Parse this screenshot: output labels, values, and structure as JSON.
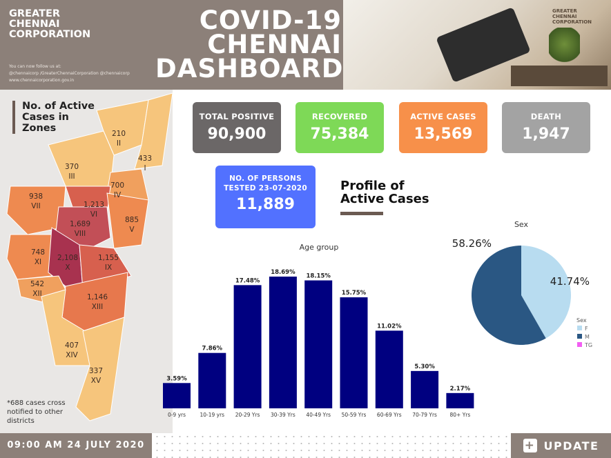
{
  "header": {
    "org_lines": [
      "GREATER",
      "CHENNAI",
      "CORPORATION"
    ],
    "follow_text": "You can now follow us at:",
    "social": "@chennaicorp  /GreaterChennaiCorporation  @chennaicorp",
    "website": "www.chennaicorporation.gov.in",
    "title_lines": [
      "COVID-19",
      "CHENNAI",
      "DASHBOARD"
    ],
    "logo_lines": [
      "GREATER",
      "CHENNAI",
      "CORPORATION"
    ]
  },
  "map": {
    "title_lines": [
      "No. of Active",
      "Cases in",
      "Zones"
    ],
    "zones": [
      {
        "roman": "I",
        "value": "433"
      },
      {
        "roman": "II",
        "value": "210"
      },
      {
        "roman": "III",
        "value": "370"
      },
      {
        "roman": "IV",
        "value": "700"
      },
      {
        "roman": "V",
        "value": "885"
      },
      {
        "roman": "VI",
        "value": "1,213"
      },
      {
        "roman": "VII",
        "value": "938"
      },
      {
        "roman": "VIII",
        "value": "1,689"
      },
      {
        "roman": "IX",
        "value": "1,155"
      },
      {
        "roman": "X",
        "value": "2,108"
      },
      {
        "roman": "XI",
        "value": "748"
      },
      {
        "roman": "XII",
        "value": "542"
      },
      {
        "roman": "XIII",
        "value": "1,146"
      },
      {
        "roman": "XIV",
        "value": "407"
      },
      {
        "roman": "XV",
        "value": "337"
      }
    ],
    "note": "*688 cases cross notified to other districts"
  },
  "cards": {
    "total_positive": {
      "label": "TOTAL POSITIVE",
      "value": "90,900",
      "color": "#6b6767"
    },
    "recovered": {
      "label": "RECOVERED",
      "value": "75,384",
      "color": "#7ed957"
    },
    "active": {
      "label": "ACTIVE CASES",
      "value": "13,569",
      "color": "#f7904a"
    },
    "death": {
      "label": "DEATH",
      "value": "1,947",
      "color": "#a3a3a3"
    },
    "tested": {
      "label_lines": [
        "NO. OF PERSONS",
        "TESTED 23-07-2020"
      ],
      "value": "11,889",
      "color": "#5271ff"
    }
  },
  "profile": {
    "title_lines": [
      "Profile of",
      "Active Cases"
    ]
  },
  "chart_data": [
    {
      "type": "bar",
      "title": "Age group",
      "categories": [
        "0-9 yrs",
        "10-19 yrs",
        "20-29 Yrs",
        "30-39 Yrs",
        "40-49 Yrs",
        "50-59 Yrs",
        "60-69 Yrs",
        "70-79 Yrs",
        "80+ Yrs"
      ],
      "values": [
        3.59,
        7.86,
        17.48,
        18.69,
        18.15,
        15.75,
        11.02,
        5.3,
        2.17
      ],
      "data_labels": [
        "3.59%",
        "7.86%",
        "17.48%",
        "18.69%",
        "18.15%",
        "15.75%",
        "11.02%",
        "5.30%",
        "2.17%"
      ],
      "color": "#000080",
      "ylim": [
        0,
        20
      ]
    },
    {
      "type": "pie",
      "title": "Sex",
      "legend_title": "Sex",
      "legend_position": "bottom-right",
      "slices": [
        {
          "name": "F",
          "value": 41.74,
          "label": "41.74%",
          "color": "#b8dcf0"
        },
        {
          "name": "M",
          "value": 58.26,
          "label": "58.26%",
          "color": "#2a5783"
        },
        {
          "name": "TG",
          "value": 0,
          "label": "",
          "color": "#f25ef2"
        }
      ]
    }
  ],
  "footer": {
    "datetime": "09:00 AM 24 JULY 2020",
    "update_label": "UPDATE"
  }
}
